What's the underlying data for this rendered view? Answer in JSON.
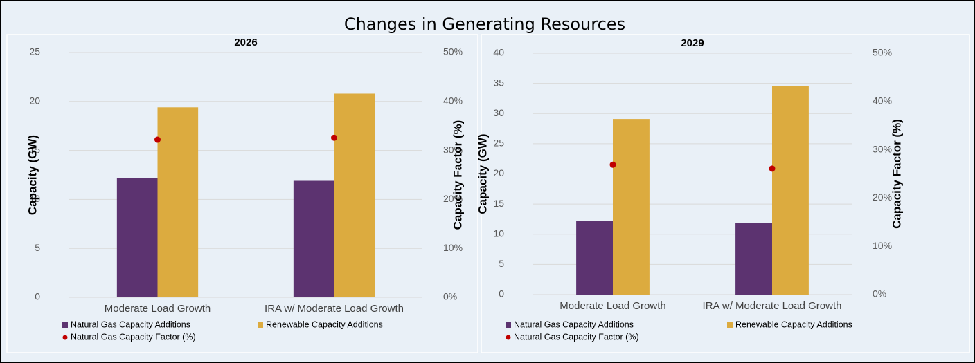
{
  "title": "Changes in Generating Resources",
  "chart_data": [
    {
      "type": "bar",
      "title": "2026",
      "categories": [
        "Moderate Load Growth",
        "IRA w/ Moderate Load Growth"
      ],
      "series": [
        {
          "name": "Natural Gas Capacity Additions",
          "color": "#5c3370",
          "values": [
            12.15,
            11.9
          ]
        },
        {
          "name": "Renewable  Capacity Additions",
          "color": "#dcab3f",
          "values": [
            19.4,
            20.8
          ]
        },
        {
          "name": "Natural Gas Capacity Factor (%)",
          "color": "#c00000",
          "values": [
            32.2,
            32.6
          ],
          "axis": "y2"
        }
      ],
      "ylabel": "Capacity (GW)",
      "y2label": "Capacity Factor (%)",
      "ylim": [
        0,
        25
      ],
      "yticks": [
        0,
        5,
        10,
        15,
        20,
        25
      ],
      "y2lim": [
        0,
        50
      ],
      "y2ticks": [
        {
          "value": 0,
          "label": "0%"
        },
        {
          "value": 10,
          "label": "10%"
        },
        {
          "value": 20,
          "label": "20%"
        },
        {
          "value": 30,
          "label": "30%"
        },
        {
          "value": 40,
          "label": "40%"
        },
        {
          "value": 50,
          "label": "50%"
        }
      ],
      "grid": true,
      "legend": "bottom"
    },
    {
      "type": "bar",
      "title": "2029",
      "categories": [
        "Moderate Load Growth",
        "IRA w/ Moderate Load Growth"
      ],
      "series": [
        {
          "name": "Natural Gas Capacity Additions",
          "color": "#5c3370",
          "values": [
            12.15,
            11.9
          ]
        },
        {
          "name": "Renewable  Capacity Additions",
          "color": "#dcab3f",
          "values": [
            29.1,
            34.5
          ]
        },
        {
          "name": "Natural Gas Capacity Factor (%)",
          "color": "#c00000",
          "values": [
            26.9,
            26.1
          ],
          "axis": "y2"
        }
      ],
      "ylabel": "Capacity (GW)",
      "y2label": "Capacity Factor (%)",
      "ylim": [
        0,
        40
      ],
      "yticks": [
        0,
        5,
        10,
        15,
        20,
        25,
        30,
        35,
        40
      ],
      "y2lim": [
        0,
        50
      ],
      "y2ticks": [
        {
          "value": 0,
          "label": "0%"
        },
        {
          "value": 10,
          "label": "10%"
        },
        {
          "value": 20,
          "label": "20%"
        },
        {
          "value": 30,
          "label": "30%"
        },
        {
          "value": 40,
          "label": "40%"
        },
        {
          "value": 50,
          "label": "50%"
        }
      ],
      "grid": true,
      "legend": "bottom"
    }
  ]
}
